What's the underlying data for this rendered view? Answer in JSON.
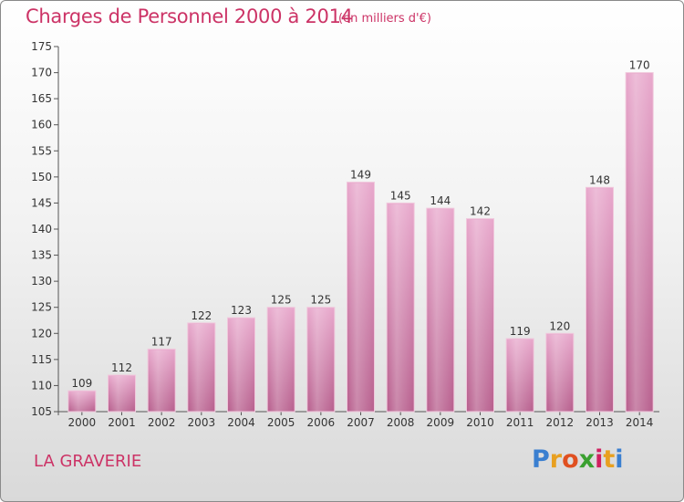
{
  "header": {
    "title": "Charges de Personnel 2000 à 2014",
    "subtitle": "(en milliers d'€)"
  },
  "footer": {
    "commune": "LA GRAVERIE",
    "logo_letters": [
      "P",
      "r",
      "o",
      "x",
      "i",
      "t",
      "i"
    ],
    "logo_colors": [
      "#3a7fd0",
      "#e8a020",
      "#e05020",
      "#3aa030",
      "#d02060",
      "#e8a020",
      "#3a7fd0"
    ]
  },
  "colors": {
    "bar_light": "#e8a8cc",
    "bar_dark": "#b8608e",
    "accent": "#cc3366"
  },
  "chart_data": {
    "type": "bar",
    "title": "Charges de Personnel 2000 à 2014",
    "subtitle": "(en milliers d'€)",
    "categories": [
      "2000",
      "2001",
      "2002",
      "2003",
      "2004",
      "2005",
      "2006",
      "2007",
      "2008",
      "2009",
      "2010",
      "2011",
      "2012",
      "2013",
      "2014"
    ],
    "values": [
      109,
      112,
      117,
      122,
      123,
      125,
      125,
      149,
      145,
      144,
      142,
      119,
      120,
      148,
      170
    ],
    "ylim": [
      105,
      175
    ],
    "yticks": [
      105,
      110,
      115,
      120,
      125,
      130,
      135,
      140,
      145,
      150,
      155,
      160,
      165,
      170,
      175
    ],
    "grid": false,
    "legend": "none"
  }
}
